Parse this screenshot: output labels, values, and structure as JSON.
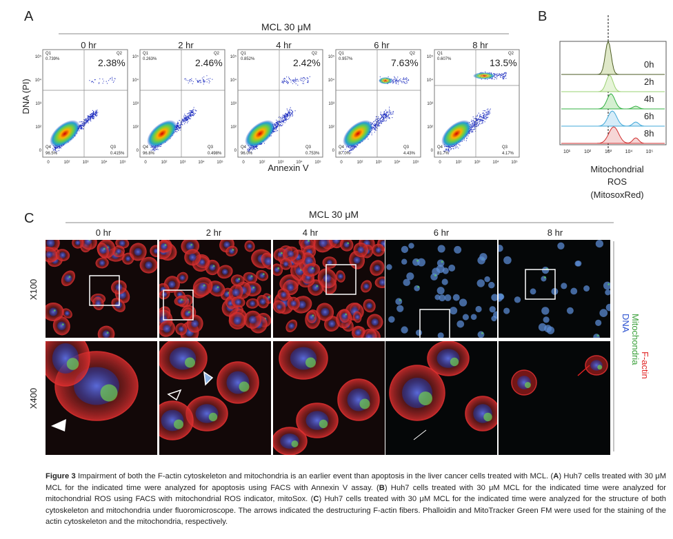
{
  "panel_a": {
    "label": "A",
    "treatment": "MCL 30 μM",
    "y_label": "DNA (PI)",
    "x_label": "Annexin V",
    "axis_ticks": [
      "0",
      "10²",
      "10³",
      "10⁴",
      "10⁵"
    ],
    "quadrant_names": [
      "Q1",
      "Q2",
      "Q3",
      "Q4"
    ],
    "plots": [
      {
        "time": "0 hr",
        "q2": "2.38%",
        "q1": "0.739%",
        "q4": "96.5%",
        "q3": "0.415%"
      },
      {
        "time": "2 hr",
        "q2": "2.46%",
        "q1": "0.263%",
        "q4": "96.8%",
        "q3": "0.498%"
      },
      {
        "time": "4 hr",
        "q2": "2.42%",
        "q1": "0.852%",
        "q4": "96.0%",
        "q3": "0.753%"
      },
      {
        "time": "6 hr",
        "q2": "7.63%",
        "q1": "0.957%",
        "q4": "87.0%",
        "q3": "4.43%"
      },
      {
        "time": "8 hr",
        "q2": "13.5%",
        "q1": "0.607%",
        "q4": "81.7%",
        "q3": "4.17%"
      }
    ]
  },
  "panel_b": {
    "label": "B",
    "samples": [
      "0h",
      "2h",
      "4h",
      "6h",
      "8h"
    ],
    "axis_ticks": [
      "10¹",
      "10²",
      "10³",
      "10⁴",
      "10⁵"
    ],
    "x_label": [
      "Mitochondrial",
      "ROS",
      "(MitosoxRed)"
    ]
  },
  "panel_c": {
    "label": "C",
    "treatment": "MCL 30 μM",
    "times": [
      "0 hr",
      "2 hr",
      "4 hr",
      "6 hr",
      "8 hr"
    ],
    "magnifications": [
      "X100",
      "X400"
    ],
    "stains": [
      "F-actin",
      "Mitochondria",
      "DNA"
    ]
  },
  "caption": [
    {
      "bold": true,
      "text": "Figure 3"
    },
    {
      "bold": false,
      "text": " Impairment of both the F-actin cytoskeleton and mitochondria is an earlier event than apoptosis in the liver cancer cells treated with MCL. ("
    },
    {
      "bold": true,
      "text": "A"
    },
    {
      "bold": false,
      "text": ") Huh7 cells treated with 30 μM MCL for the indicated time were analyzed for apoptosis using FACS with Annexin V assay. ("
    },
    {
      "bold": true,
      "text": "B"
    },
    {
      "bold": false,
      "text": ") Huh7 cells treated with 30 μM MCL for the indicated time were analyzed for mitochondrial ROS using FACS with mitochondrial ROS indicator, mitoSox. ("
    },
    {
      "bold": true,
      "text": "C"
    },
    {
      "bold": false,
      "text": ") Huh7 cells treated with 30 μM MCL for the indicated time were analyzed for the structure of both cytoskeleton and mitochondria under fluoromicroscope. The arrows indicated the destructuring F-actin fibers. Phalloidin and MitoTracker Green FM were used for the staining of the actin cytoskeleton and the mitochondria, respectively."
    }
  ]
}
